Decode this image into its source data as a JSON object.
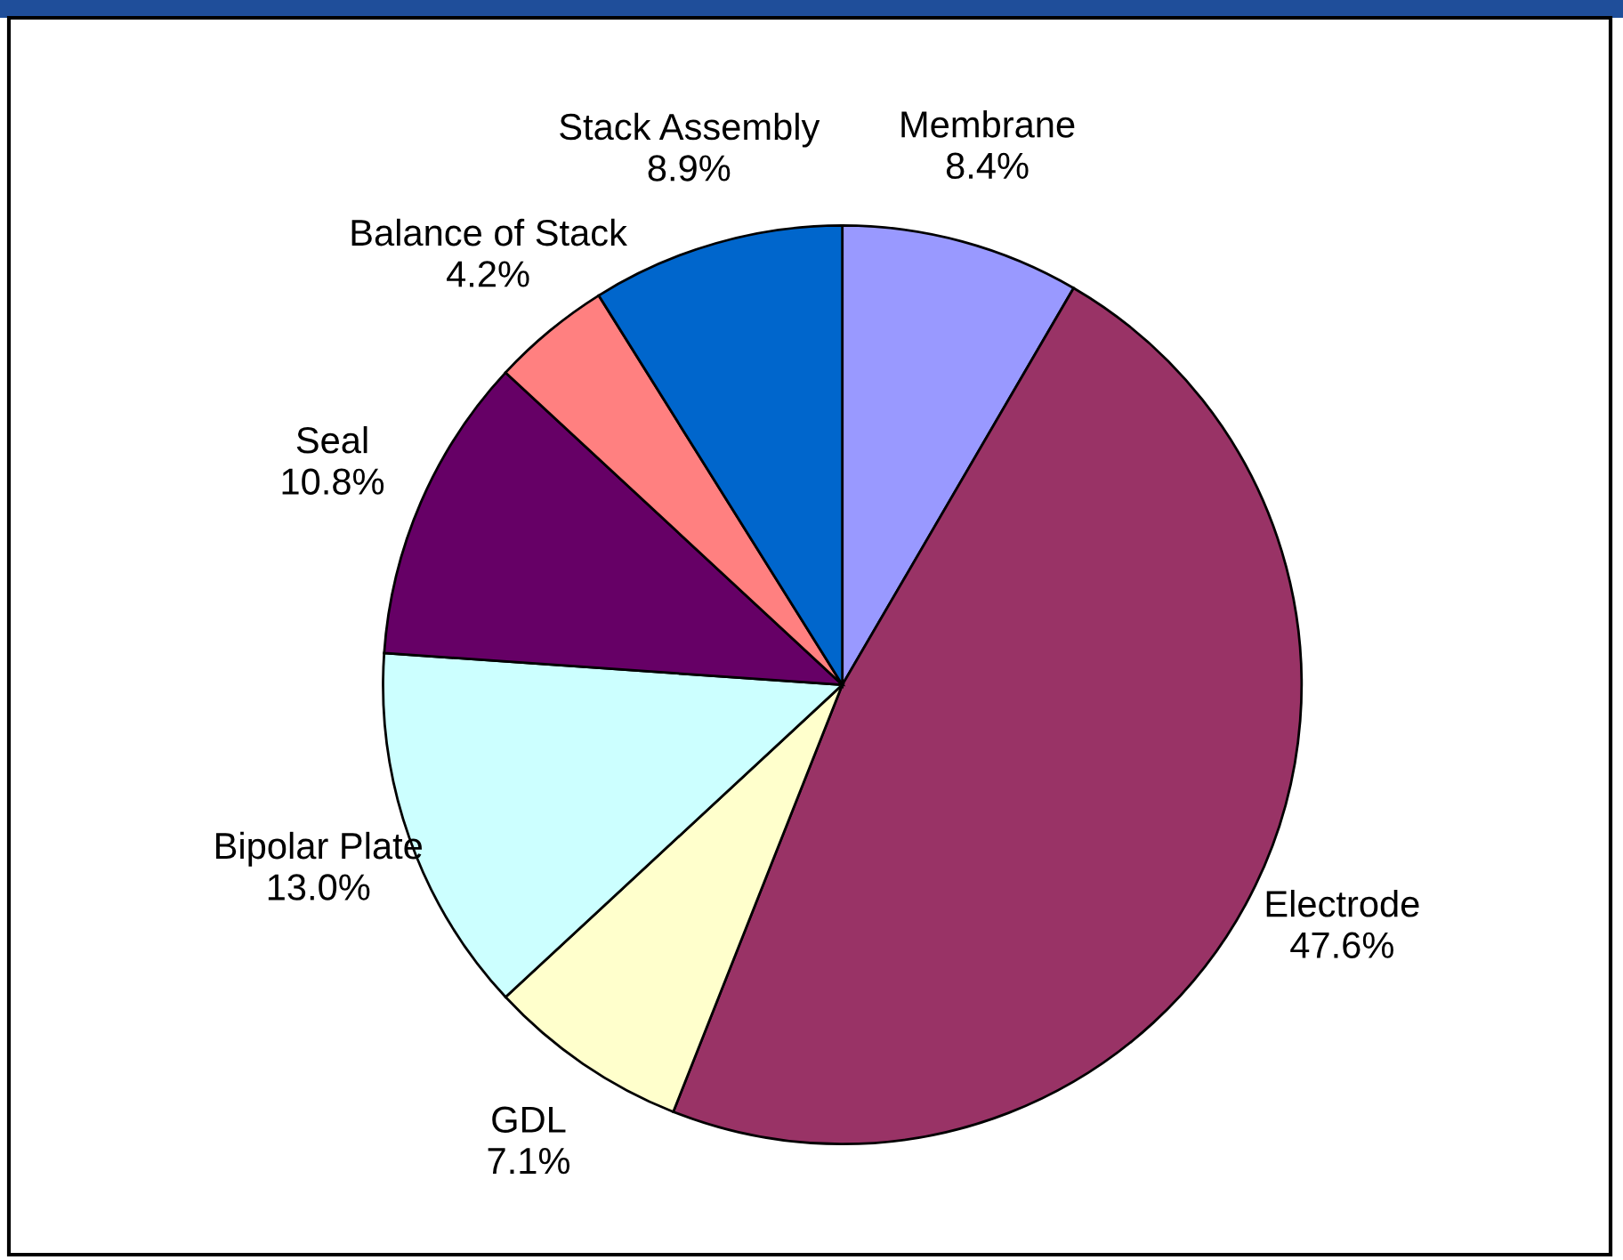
{
  "chart_data": {
    "type": "pie",
    "categories": [
      "Membrane",
      "Electrode",
      "GDL",
      "Bipolar Plate",
      "Seal",
      "Balance of Stack",
      "Stack Assembly"
    ],
    "values": [
      8.4,
      47.6,
      7.1,
      13.0,
      10.8,
      4.2,
      8.9
    ],
    "value_labels": [
      "8.4%",
      "47.6%",
      "7.1%",
      "13.0%",
      "10.8%",
      "4.2%",
      "8.9%"
    ],
    "colors": [
      "#9999ff",
      "#993366",
      "#ffffcc",
      "#ccffff",
      "#660066",
      "#ff8080",
      "#0066cc"
    ],
    "legend": false
  }
}
